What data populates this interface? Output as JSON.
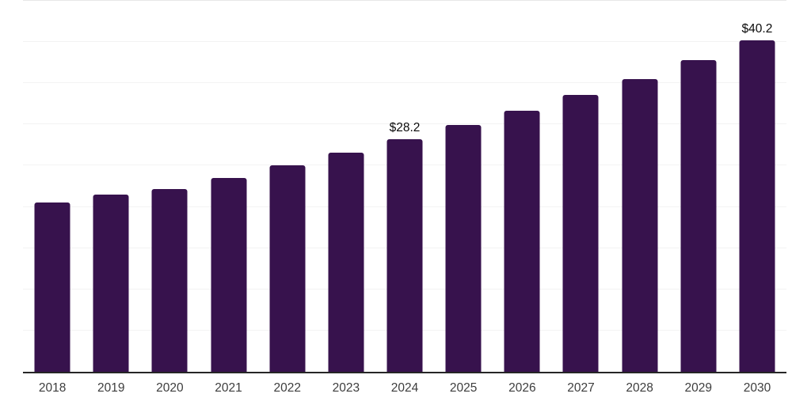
{
  "chart_data": {
    "type": "bar",
    "title": "",
    "xlabel": "",
    "ylabel": "",
    "ylim": [
      0,
      45
    ],
    "grid": "horizontal gridlines every 5 units, no y-axis tick labels",
    "legend": "none",
    "categories": [
      "2018",
      "2019",
      "2020",
      "2021",
      "2022",
      "2023",
      "2024",
      "2025",
      "2026",
      "2027",
      "2028",
      "2029",
      "2030"
    ],
    "values": [
      20.5,
      21.5,
      22.2,
      23.5,
      25.0,
      26.6,
      28.2,
      29.9,
      31.7,
      33.6,
      35.5,
      37.8,
      40.2
    ],
    "point_labels": [
      "",
      "",
      "",
      "",
      "",
      "",
      "$28.2",
      "",
      "",
      "",
      "",
      "",
      "$40.2"
    ],
    "colors": {
      "bar": "#37124d",
      "axis_line": "#262626",
      "gridline": "#f3f3f3",
      "top_gridline": "#e7e7e7",
      "tick_label": "#3d3d3d",
      "data_label": "#0a0a0a",
      "background": "#ffffff"
    }
  }
}
